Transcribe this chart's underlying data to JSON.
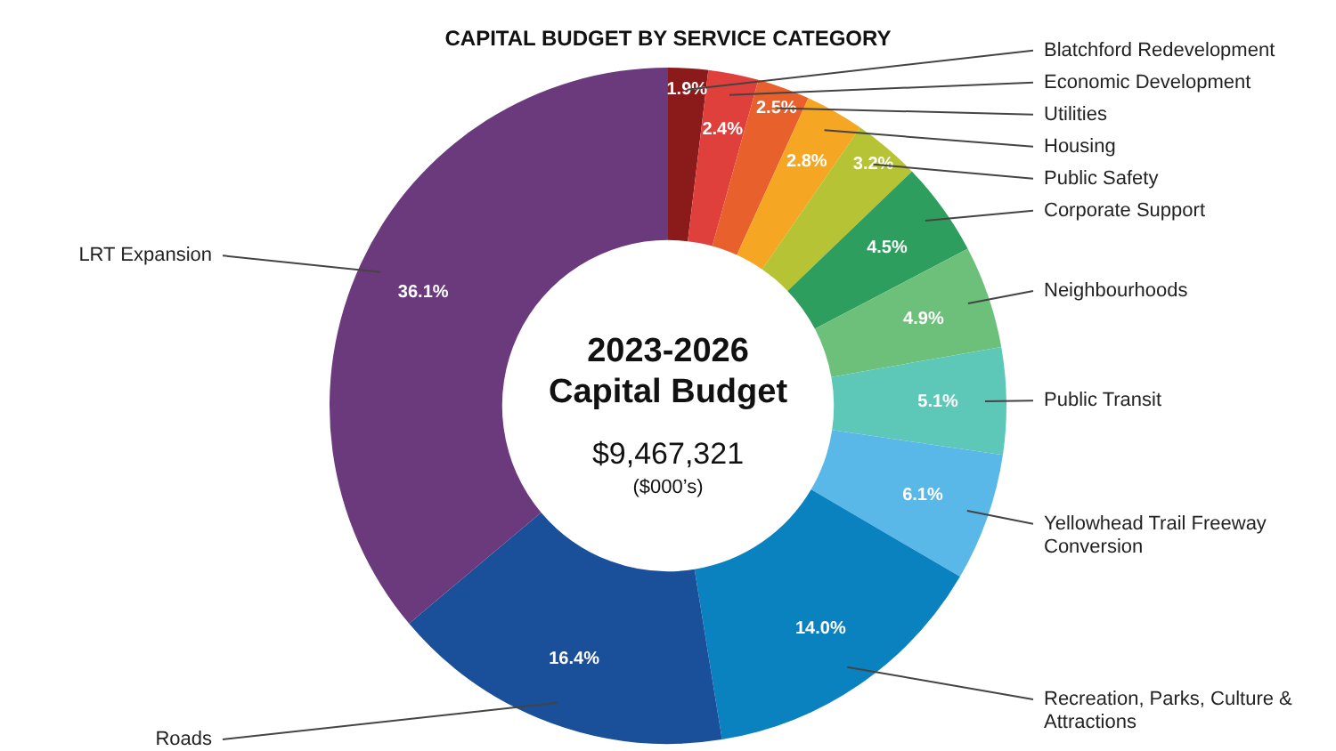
{
  "chart_data": {
    "type": "donut",
    "title": "CAPITAL BUDGET BY SERVICE CATEGORY",
    "categories": [
      "Blatchford Redevelopment",
      "Economic Development",
      "Utilities",
      "Housing",
      "Public Safety",
      "Corporate Support",
      "Neighbourhoods",
      "Public Transit",
      "Yellowhead Trail Freeway Conversion",
      "Recreation, Parks, Culture & Attractions",
      "Roads",
      "LRT Expansion"
    ],
    "values": [
      1.9,
      2.4,
      2.5,
      2.8,
      3.2,
      4.5,
      4.9,
      5.1,
      6.1,
      14.0,
      16.4,
      36.1
    ],
    "colors": [
      "#8b1a1a",
      "#e0403c",
      "#e8602c",
      "#f5a623",
      "#b5c334",
      "#2e9e5e",
      "#6cc07a",
      "#5ec8b8",
      "#5ab8e8",
      "#0a82c0",
      "#1a4f9a",
      "#6b3a7d"
    ],
    "value_labels": [
      "1.9%",
      "2.4%",
      "2.5%",
      "2.8%",
      "3.2%",
      "4.5%",
      "4.9%",
      "5.1%",
      "6.1%",
      "14.0%",
      "16.4%",
      "36.1%"
    ],
    "annotations": [
      "2023-2026",
      "Capital Budget",
      "$9,467,321",
      "($000’s)"
    ],
    "legend": false
  }
}
